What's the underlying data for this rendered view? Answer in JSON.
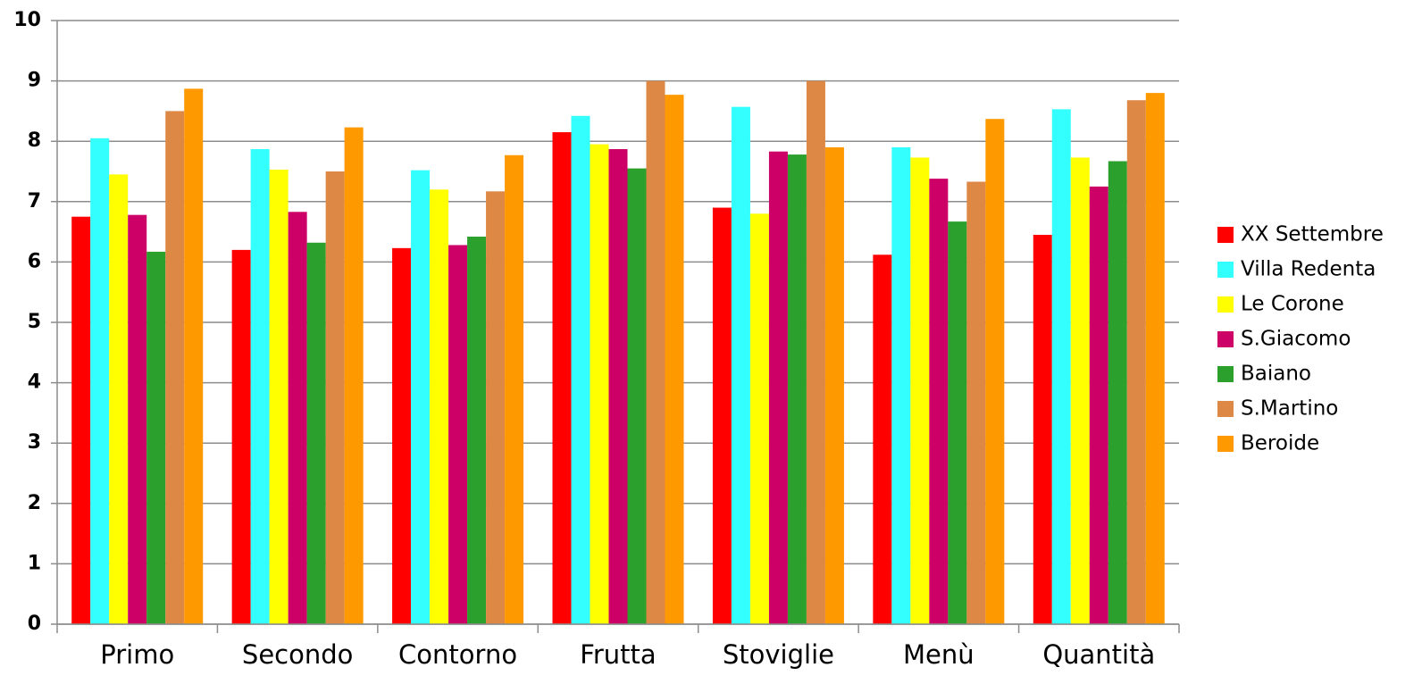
{
  "chart_data": {
    "type": "bar",
    "categories": [
      "Primo",
      "Secondo",
      "Contorno",
      "Frutta",
      "Stoviglie",
      "Menù",
      "Quantità"
    ],
    "series": [
      {
        "name": "XX Settembre",
        "color": "#ff0000",
        "values": [
          6.75,
          6.2,
          6.23,
          8.15,
          6.9,
          6.12,
          6.45
        ]
      },
      {
        "name": "Villa Redenta",
        "color": "#33ffff",
        "values": [
          8.05,
          7.87,
          7.52,
          8.42,
          8.57,
          7.9,
          8.53
        ]
      },
      {
        "name": "Le Corone",
        "color": "#ffff00",
        "values": [
          7.45,
          7.53,
          7.2,
          7.95,
          6.8,
          7.73,
          7.73
        ]
      },
      {
        "name": "S.Giacomo",
        "color": "#cc0066",
        "values": [
          6.78,
          6.83,
          6.28,
          7.87,
          7.83,
          7.38,
          7.25
        ]
      },
      {
        "name": "Baiano",
        "color": "#2ca02c",
        "values": [
          6.17,
          6.32,
          6.42,
          7.55,
          7.78,
          6.67,
          7.67
        ]
      },
      {
        "name": "S.Martino",
        "color": "#dd8844",
        "values": [
          8.5,
          7.5,
          7.17,
          9.0,
          9.0,
          7.33,
          8.68
        ]
      },
      {
        "name": "Beroide",
        "color": "#ff9900",
        "values": [
          8.87,
          8.23,
          7.77,
          8.77,
          7.9,
          8.37,
          8.8
        ]
      }
    ],
    "ylim": [
      0,
      10
    ],
    "yticks": [
      0,
      1,
      2,
      3,
      4,
      5,
      6,
      7,
      8,
      9,
      10
    ],
    "grid": true,
    "legend": "right"
  }
}
